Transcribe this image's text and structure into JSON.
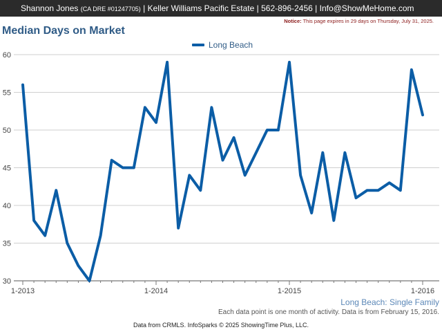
{
  "header": {
    "agent_name": "Shannon Jones",
    "dre_number": "(CA DRE #01247705)",
    "brokerage": "| Keller Williams Pacific Estate | 562-896-2456 | Info@ShowMeHome.com"
  },
  "notice": {
    "label": "Notice:",
    "text": "This page expires in 29 days on Thursday, July 31, 2025."
  },
  "chart_data": {
    "type": "line",
    "title": "Median Days on Market",
    "xlabel": "",
    "ylabel": "",
    "x": [
      "2013-01",
      "2013-02",
      "2013-03",
      "2013-04",
      "2013-05",
      "2013-06",
      "2013-07",
      "2013-08",
      "2013-09",
      "2013-10",
      "2013-11",
      "2013-12",
      "2014-01",
      "2014-02",
      "2014-03",
      "2014-04",
      "2014-05",
      "2014-06",
      "2014-07",
      "2014-08",
      "2014-09",
      "2014-10",
      "2014-11",
      "2014-12",
      "2015-01",
      "2015-02",
      "2015-03",
      "2015-04",
      "2015-05",
      "2015-06",
      "2015-07",
      "2015-08",
      "2015-09",
      "2015-10",
      "2015-11",
      "2015-12",
      "2016-01"
    ],
    "x_tick_labels": [
      "1-2013",
      "1-2014",
      "1-2015",
      "1-2016"
    ],
    "series": [
      {
        "name": "Long Beach",
        "color": "#0b5da6",
        "values": [
          56,
          38,
          36,
          42,
          35,
          32,
          30,
          36,
          46,
          45,
          45,
          53,
          51,
          59,
          37,
          44,
          42,
          53,
          46,
          49,
          44,
          47,
          50,
          50,
          59,
          44,
          39,
          47,
          38,
          47,
          41,
          42,
          42,
          43,
          42,
          58,
          52
        ]
      }
    ],
    "ylim": [
      30,
      60
    ],
    "yticks": [
      30,
      35,
      40,
      45,
      50,
      55,
      60
    ],
    "grid": true,
    "legend_position": "top-center",
    "subtitle": "Long Beach: Single Family",
    "footnote": "Each data point is one month of activity. Data is from February 15, 2016."
  },
  "credit": "Data from CRMLS. InfoSparks © 2025 ShowingTime Plus, LLC."
}
